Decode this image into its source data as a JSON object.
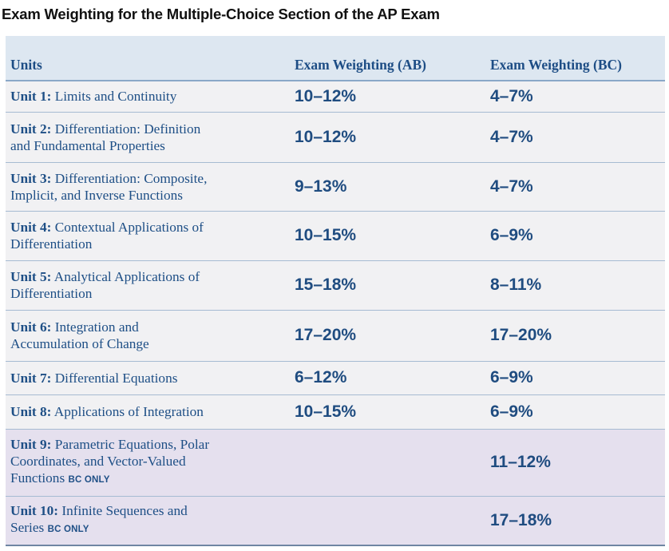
{
  "title": "Exam Weighting for the Multiple-Choice Section of the AP Exam",
  "headers": {
    "units": "Units",
    "ab": "Exam Weighting (AB)",
    "bc": "Exam Weighting (BC)"
  },
  "bc_only_label": "BC ONLY",
  "rows": [
    {
      "unit": "Unit 1:",
      "line1": "Limits and Continuity",
      "line2": "",
      "line3": "",
      "ab": "10–12%",
      "bc": "4–7%",
      "bc_only": false
    },
    {
      "unit": "Unit 2:",
      "line1": "Differentiation: Definition",
      "line2": "and Fundamental Properties",
      "line3": "",
      "ab": "10–12%",
      "bc": "4–7%",
      "bc_only": false
    },
    {
      "unit": "Unit 3:",
      "line1": "Differentiation: Composite,",
      "line2": "Implicit, and Inverse Functions",
      "line3": "",
      "ab": "9–13%",
      "bc": "4–7%",
      "bc_only": false
    },
    {
      "unit": "Unit 4:",
      "line1": "Contextual Applications of",
      "line2": "Differentiation",
      "line3": "",
      "ab": "10–15%",
      "bc": "6–9%",
      "bc_only": false
    },
    {
      "unit": "Unit 5:",
      "line1": "Analytical Applications of",
      "line2": "Differentiation",
      "line3": "",
      "ab": "15–18%",
      "bc": "8–11%",
      "bc_only": false
    },
    {
      "unit": "Unit 6:",
      "line1": "Integration and",
      "line2": "Accumulation of Change",
      "line3": "",
      "ab": "17–20%",
      "bc": "17–20%",
      "bc_only": false
    },
    {
      "unit": "Unit 7:",
      "line1": "Differential Equations",
      "line2": "",
      "line3": "",
      "ab": "6–12%",
      "bc": "6–9%",
      "bc_only": false
    },
    {
      "unit": "Unit 8:",
      "line1": "Applications of Integration",
      "line2": "",
      "line3": "",
      "ab": "10–15%",
      "bc": "6–9%",
      "bc_only": false
    },
    {
      "unit": "Unit 9:",
      "line1": "Parametric Equations, Polar",
      "line2": "Coordinates, and Vector-Valued",
      "line3": "Functions",
      "ab": "",
      "bc": "11–12%",
      "bc_only": true
    },
    {
      "unit": "Unit 10:",
      "line1": "Infinite Sequences and",
      "line2": "Series",
      "line3": "",
      "ab": "",
      "bc": "17–18%",
      "bc_only": true
    }
  ]
}
